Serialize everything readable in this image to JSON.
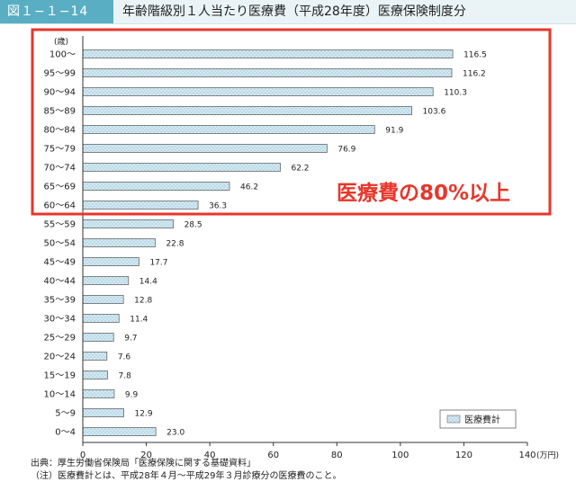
{
  "header": {
    "figure_number": "図１−１−14",
    "title": "年齢階級別１人当たり医療費（平成28年度）医療保険制度分"
  },
  "chart_data": {
    "type": "bar",
    "orientation": "horizontal",
    "y_unit_label": "(歳)",
    "categories": [
      "100～",
      "95～99",
      "90～94",
      "85～89",
      "80～84",
      "75～79",
      "70～74",
      "65～69",
      "60～64",
      "55～59",
      "50～54",
      "45～49",
      "40～44",
      "35～39",
      "30～34",
      "25～29",
      "20～24",
      "15～19",
      "10～14",
      "5～9",
      "0～4"
    ],
    "series": [
      {
        "name": "医療費計",
        "values": [
          116.5,
          116.2,
          110.3,
          103.6,
          91.9,
          76.9,
          62.2,
          46.2,
          36.3,
          28.5,
          22.8,
          17.7,
          14.4,
          12.8,
          11.4,
          9.7,
          7.6,
          7.8,
          9.9,
          12.9,
          23.0
        ]
      }
    ],
    "xlim": [
      0,
      140
    ],
    "x_ticks": [
      0,
      20,
      40,
      60,
      80,
      100,
      120,
      140
    ],
    "x_unit_label": "(万円)",
    "legend_position": "bottom-right",
    "bar_color": "#cfe6f0",
    "highlight": {
      "label": "医療費の80%以上",
      "from": "100～",
      "to": "60～64",
      "color": "#e8362a"
    }
  },
  "footer": {
    "source": "出典：厚生労働省保険局「医療保険に関する基礎資料」",
    "note": "（注）医療費計とは、平成28年４月～平成29年３月診療分の医療費のこと。"
  }
}
